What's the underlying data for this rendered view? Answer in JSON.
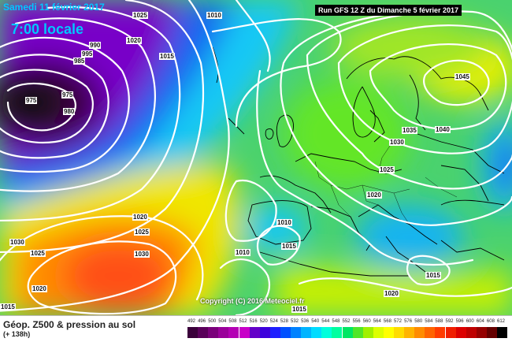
{
  "header": {
    "date": "Samedi 11 février 2017",
    "local_time": "7:00 locale",
    "run_info": "Run GFS 12 Z du Dimanche 5 février 2017"
  },
  "copyright": "Copyright (C) 2016 Meteociel.fr",
  "isobar_labels": [
    {
      "text": "1025"
    },
    {
      "text": "1010"
    },
    {
      "text": "1020"
    },
    {
      "text": "1015"
    },
    {
      "text": "990"
    },
    {
      "text": "995"
    },
    {
      "text": "985"
    },
    {
      "text": "975"
    },
    {
      "text": "975"
    },
    {
      "text": "980"
    },
    {
      "text": "1045"
    },
    {
      "text": "1035"
    },
    {
      "text": "1040"
    },
    {
      "text": "1030"
    },
    {
      "text": "1025"
    },
    {
      "text": "1020"
    },
    {
      "text": "1010"
    },
    {
      "text": "1015"
    },
    {
      "text": "1010"
    },
    {
      "text": "1015"
    },
    {
      "text": "1020"
    },
    {
      "text": "1015"
    },
    {
      "text": "1020"
    },
    {
      "text": "1025"
    },
    {
      "text": "1030"
    },
    {
      "text": "1030"
    },
    {
      "text": "1025"
    },
    {
      "text": "1020"
    },
    {
      "text": "1015"
    }
  ],
  "footer": {
    "title": "Géop. Z500 & pression au sol",
    "subtitle": "(+ 138h)"
  },
  "scale": {
    "labels": [
      "492",
      "496",
      "500",
      "504",
      "508",
      "512",
      "516",
      "520",
      "524",
      "528",
      "532",
      "536",
      "540",
      "544",
      "548",
      "552",
      "556",
      "560",
      "564",
      "568",
      "572",
      "576",
      "580",
      "584",
      "588",
      "592",
      "596",
      "600",
      "604",
      "608",
      "612"
    ],
    "colors": [
      "#3a003a",
      "#5a005a",
      "#7a007a",
      "#9a009a",
      "#b400b4",
      "#c800c8",
      "#6400c8",
      "#3c00dc",
      "#1e1eff",
      "#0050ff",
      "#0082ff",
      "#00b4ff",
      "#00dcff",
      "#00ffdc",
      "#00ffa0",
      "#00e664",
      "#50e628",
      "#a0f000",
      "#dcff00",
      "#ffff00",
      "#ffdc00",
      "#ffb400",
      "#ff8c00",
      "#ff6400",
      "#ff3c00",
      "#f01e00",
      "#dc0000",
      "#be0000",
      "#960000",
      "#640000",
      "#000000"
    ]
  }
}
